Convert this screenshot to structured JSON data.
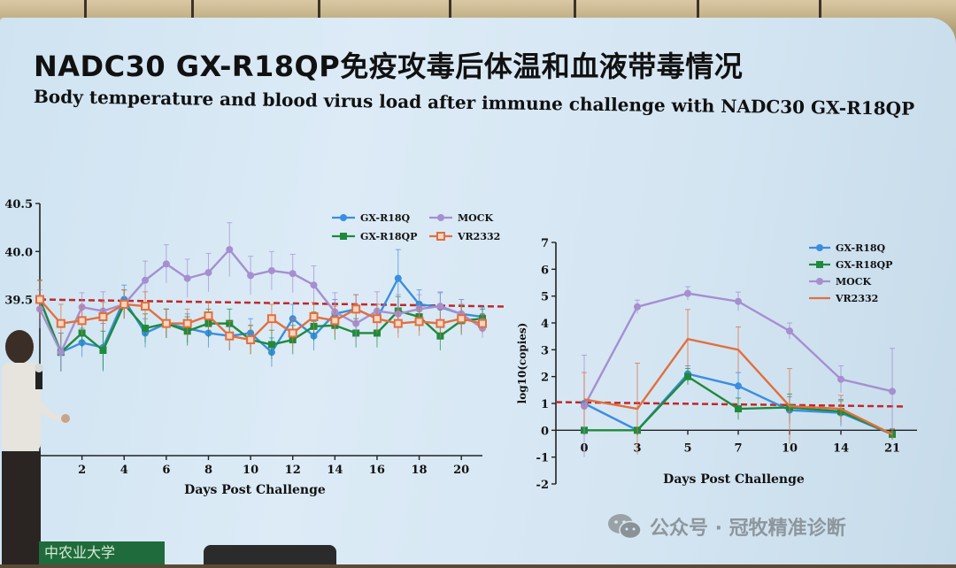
{
  "slide": {
    "title_cn": "NADC30 GX-R18QP免疫攻毒后体温和血液带毒情况",
    "title_en": "Body temperature and blood virus load after immune challenge with NADC30 GX-R18QP",
    "watermark": "公众号 · 冠牧精准诊断",
    "sign_text": "中农业大学"
  },
  "colors": {
    "GX-R18Q": "#3a8ee0",
    "GX-R18QP": "#1f8a3c",
    "MOCK": "#a58fd0",
    "VR2332": "#e0703e",
    "threshold": "#c0282a"
  },
  "chart_data": [
    {
      "type": "line",
      "title": "",
      "xlabel": "Days Post Challenge",
      "ylabel": "",
      "xlim": [
        0,
        21
      ],
      "ylim": [
        38.5,
        40.5
      ],
      "x_ticks": [
        "2",
        "4",
        "6",
        "8",
        "10",
        "12",
        "14",
        "16",
        "18",
        "20"
      ],
      "y_ticks": [
        "39.5",
        "40.0",
        "40.5"
      ],
      "threshold": 39.5,
      "legend": [
        [
          "GX-R18Q",
          "MOCK"
        ],
        [
          "GX-R18QP",
          "VR2332"
        ]
      ],
      "x": [
        0,
        1,
        2,
        3,
        4,
        5,
        6,
        7,
        8,
        9,
        10,
        11,
        12,
        13,
        14,
        15,
        16,
        17,
        18,
        19,
        20,
        21
      ],
      "series": [
        {
          "name": "GX-R18Q",
          "marker": "circle",
          "values": [
            39.5,
            38.95,
            39.05,
            39.0,
            39.5,
            39.15,
            39.25,
            39.2,
            39.15,
            39.12,
            39.15,
            38.95,
            39.3,
            39.12,
            39.35,
            39.4,
            39.3,
            39.72,
            39.45,
            39.42,
            39.35,
            39.32
          ],
          "errors": [
            0.2,
            0.2,
            0.15,
            0.25,
            0.15,
            0.15,
            0.15,
            0.15,
            0.15,
            0.15,
            0.15,
            0.15,
            0.15,
            0.15,
            0.15,
            0.15,
            0.15,
            0.3,
            0.15,
            0.15,
            0.15,
            0.1
          ]
        },
        {
          "name": "GX-R18QP",
          "marker": "square",
          "values": [
            39.5,
            38.95,
            39.15,
            38.97,
            39.45,
            39.2,
            39.25,
            39.17,
            39.25,
            39.25,
            39.08,
            39.03,
            39.08,
            39.22,
            39.23,
            39.15,
            39.15,
            39.38,
            39.32,
            39.12,
            39.28,
            39.3
          ],
          "errors": [
            0.2,
            0.2,
            0.15,
            0.2,
            0.15,
            0.15,
            0.15,
            0.15,
            0.15,
            0.15,
            0.15,
            0.15,
            0.15,
            0.15,
            0.15,
            0.15,
            0.15,
            0.15,
            0.15,
            0.15,
            0.15,
            0.1
          ]
        },
        {
          "name": "MOCK",
          "marker": "circle",
          "values": [
            39.4,
            38.95,
            39.42,
            39.38,
            39.45,
            39.7,
            39.87,
            39.72,
            39.78,
            40.02,
            39.75,
            39.8,
            39.77,
            39.65,
            39.37,
            39.25,
            39.38,
            39.35,
            39.4,
            39.43,
            39.35,
            39.2
          ],
          "errors": [
            0.2,
            0.2,
            0.15,
            0.2,
            0.15,
            0.2,
            0.2,
            0.2,
            0.2,
            0.28,
            0.2,
            0.2,
            0.2,
            0.2,
            0.2,
            0.2,
            0.2,
            0.2,
            0.15,
            0.15,
            0.15,
            0.1
          ]
        },
        {
          "name": "VR2332",
          "marker": "square",
          "values": [
            39.5,
            39.25,
            39.28,
            39.32,
            39.45,
            39.43,
            39.25,
            39.25,
            39.33,
            39.12,
            39.08,
            39.3,
            39.15,
            39.32,
            39.28,
            39.4,
            39.3,
            39.25,
            39.27,
            39.25,
            39.3,
            39.25
          ],
          "errors": [
            0.2,
            0.2,
            0.15,
            0.15,
            0.15,
            0.15,
            0.15,
            0.15,
            0.15,
            0.15,
            0.15,
            0.15,
            0.15,
            0.15,
            0.15,
            0.15,
            0.15,
            0.15,
            0.15,
            0.15,
            0.15,
            0.1
          ]
        }
      ]
    },
    {
      "type": "line",
      "title": "",
      "xlabel": "Days Post Challenge",
      "ylabel": "log10(copies)",
      "ylim": [
        -2,
        7
      ],
      "categories": [
        "0",
        "3",
        "5",
        "7",
        "10",
        "14",
        "21"
      ],
      "y_ticks": [
        "-2",
        "-1",
        "0",
        "1",
        "2",
        "3",
        "4",
        "5",
        "6",
        "7"
      ],
      "threshold": 1.05,
      "legend": [
        "GX-R18Q",
        "GX-R18QP",
        "MOCK",
        "VR2332"
      ],
      "series": [
        {
          "name": "GX-R18Q",
          "marker": "circle",
          "values": [
            1.0,
            0.0,
            2.1,
            1.65,
            0.75,
            0.65,
            -0.15
          ],
          "errors": [
            0.0,
            0.0,
            0.3,
            0.5,
            0.5,
            0.5,
            0.2
          ]
        },
        {
          "name": "GX-R18QP",
          "marker": "square",
          "values": [
            0.0,
            0.0,
            2.0,
            0.8,
            0.85,
            0.7,
            -0.15
          ],
          "errors": [
            0.0,
            0.0,
            0.3,
            0.4,
            0.5,
            0.4,
            0.2
          ]
        },
        {
          "name": "MOCK",
          "marker": "circle",
          "values": [
            0.9,
            4.6,
            5.1,
            4.8,
            3.7,
            1.9,
            1.45
          ],
          "errors": [
            1.9,
            0.25,
            0.25,
            0.35,
            0.3,
            0.5,
            1.6
          ]
        },
        {
          "name": "VR2332",
          "marker": "none",
          "values": [
            1.15,
            0.8,
            3.4,
            3.0,
            0.9,
            0.8,
            -0.15
          ],
          "errors": [
            1.0,
            1.7,
            1.1,
            0.85,
            1.4,
            0.5,
            0.2
          ]
        }
      ]
    }
  ]
}
